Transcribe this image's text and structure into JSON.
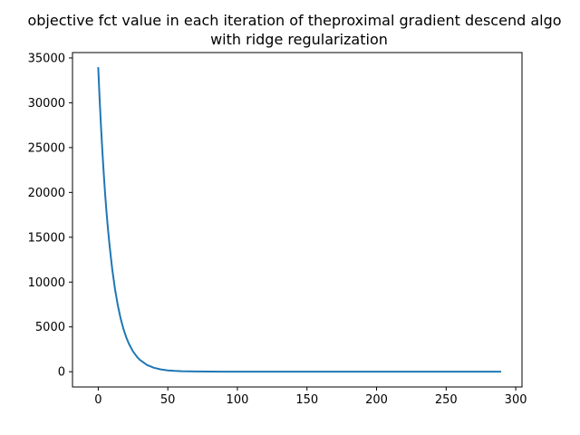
{
  "chart_data": {
    "type": "line",
    "title_line1": "objective fct value in each iteration of theproximal gradient descend algo",
    "title_line2": "with ridge regularization",
    "xlabel": "",
    "ylabel": "",
    "xlim": [
      -18.5,
      304.5
    ],
    "ylim": [
      -1700,
      35600
    ],
    "grid": false,
    "x_ticks": [
      0,
      50,
      100,
      150,
      200,
      250,
      300
    ],
    "x_tick_labels": [
      "0",
      "50",
      "100",
      "150",
      "200",
      "250",
      "300"
    ],
    "y_ticks": [
      0,
      5000,
      10000,
      15000,
      20000,
      25000,
      30000,
      35000
    ],
    "y_tick_labels": [
      "0",
      "5000",
      "10000",
      "15000",
      "20000",
      "25000",
      "30000",
      "35000"
    ],
    "series": [
      {
        "color": "#1f77b4",
        "x": [
          0,
          1,
          2,
          3,
          4,
          5,
          6,
          7,
          8,
          10,
          12,
          14,
          16,
          18,
          20,
          22,
          25,
          28,
          30,
          35,
          40,
          45,
          50,
          55,
          60,
          70,
          80,
          90,
          100,
          120,
          150,
          200,
          250,
          289
        ],
        "y": [
          33900,
          30400,
          27300,
          24500,
          22000,
          19700,
          17700,
          15900,
          14300,
          11500,
          9250,
          7450,
          6000,
          4830,
          3890,
          3130,
          2260,
          1630,
          1310,
          760,
          440,
          255,
          150,
          90,
          55,
          25,
          15,
          10,
          8,
          6,
          5,
          5,
          5,
          5
        ]
      }
    ]
  }
}
